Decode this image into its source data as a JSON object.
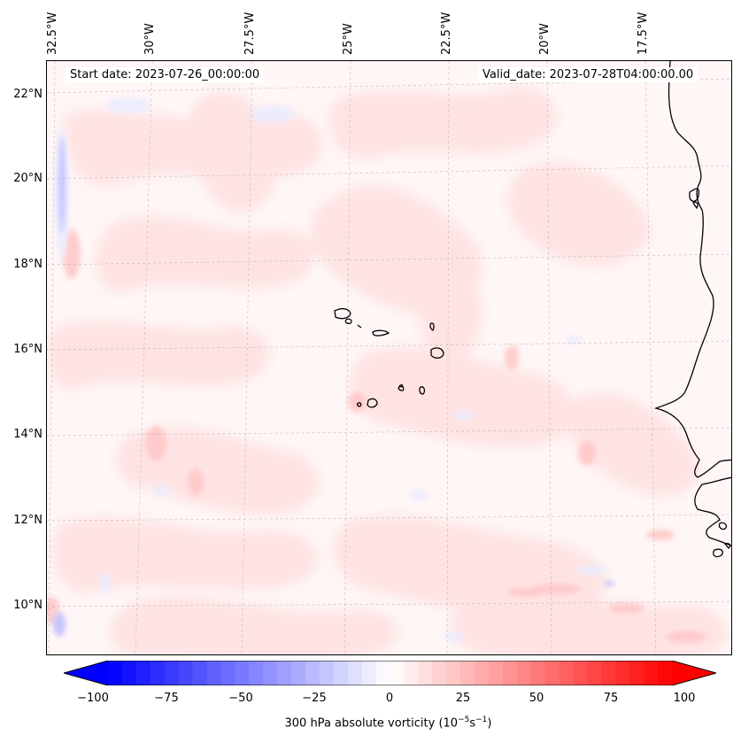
{
  "header": {
    "start_date": "Start date: 2023-07-26_00:00:00",
    "valid_date": "Valid_date: 2023-07-28T04:00:00.00"
  },
  "map": {
    "lon_labels": [
      "32.5°W",
      "30°W",
      "27.5°W",
      "25°W",
      "22.5°W",
      "20°W",
      "17.5°W"
    ],
    "lat_labels": [
      "22°N",
      "20°N",
      "18°N",
      "16°N",
      "14°N",
      "12°N",
      "10°N"
    ],
    "field_colors": {
      "background": "#fff6f6",
      "light_red": "#ffe3e3",
      "mid_red": "#ffc8c8",
      "light_blue": "#ececff",
      "mid_blue": "#c6c6ff",
      "coast": "#000000"
    }
  },
  "colorbar": {
    "ticks": [
      "−100",
      "−75",
      "−50",
      "−25",
      "0",
      "25",
      "50",
      "75",
      "100"
    ],
    "label_text": "300 hPa absolute vorticity (10",
    "label_exp1": "−5",
    "label_mid": "s",
    "label_exp2": "−1",
    "label_end": ")",
    "min_color": "#0000ff",
    "mid_color": "#ffffff",
    "max_color": "#ff0000"
  }
}
